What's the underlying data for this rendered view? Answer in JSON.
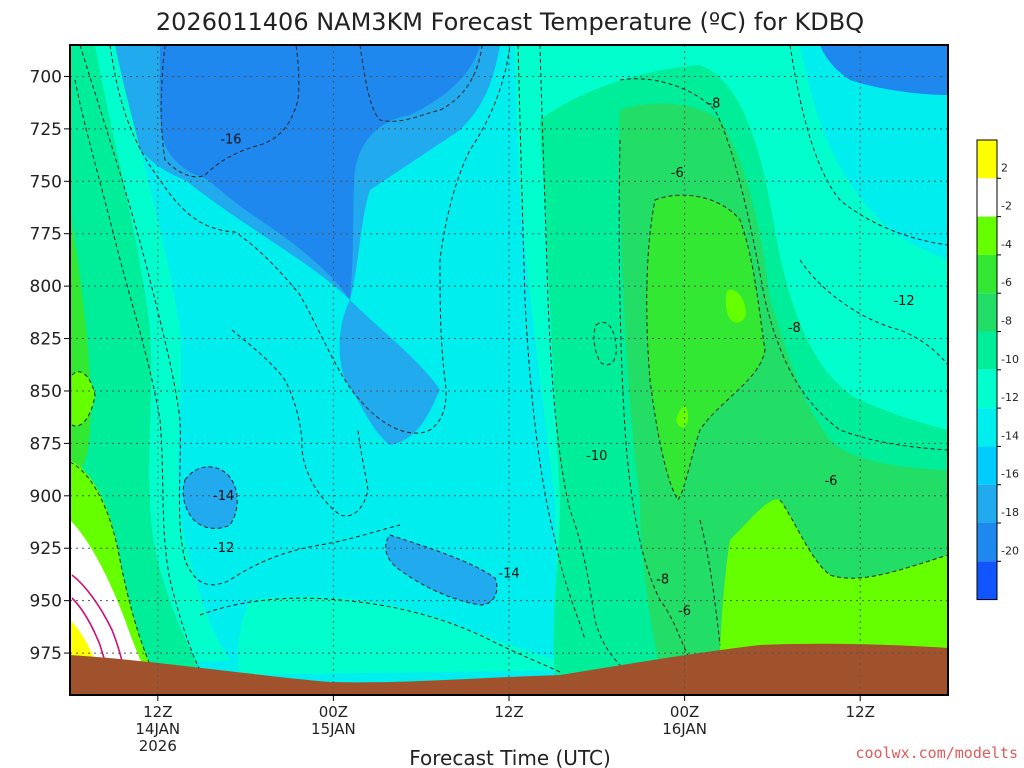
{
  "chart_data": {
    "type": "heatmap",
    "title": "2026011406 NAM3KM Forecast Temperature (ºC) for KDBQ",
    "xlabel": "Forecast Time (UTC)",
    "credit": "coolwx.com/modelts",
    "y_axis": {
      "ticks": [
        700,
        725,
        750,
        775,
        800,
        825,
        850,
        875,
        900,
        925,
        950,
        975
      ],
      "range": [
        685,
        995
      ],
      "inverted": true
    },
    "x_axis": {
      "ticks": [
        {
          "hour": 6,
          "line1": "12Z",
          "line2": "14JAN",
          "line3": "2026"
        },
        {
          "hour": 18,
          "line1": "00Z",
          "line2": "15JAN",
          "line3": ""
        },
        {
          "hour": 30,
          "line1": "12Z",
          "line2": "",
          "line3": ""
        },
        {
          "hour": 42,
          "line1": "00Z",
          "line2": "16JAN",
          "line3": ""
        },
        {
          "hour": 54,
          "line1": "12Z",
          "line2": "",
          "line3": ""
        }
      ],
      "range": [
        0,
        60
      ]
    },
    "grid": true,
    "legend": "right",
    "colorbar": {
      "bands": [
        {
          "min": 2,
          "max": 4,
          "color": "#ffff00"
        },
        {
          "min": -2,
          "max": 2,
          "color": "#ffffff"
        },
        {
          "min": -4,
          "max": -2,
          "color": "#66ff00"
        },
        {
          "min": -6,
          "max": -4,
          "color": "#33e833"
        },
        {
          "min": -8,
          "max": -6,
          "color": "#22dd66"
        },
        {
          "min": -10,
          "max": -8,
          "color": "#00ee99"
        },
        {
          "min": -12,
          "max": -10,
          "color": "#00ffcc"
        },
        {
          "min": -14,
          "max": -12,
          "color": "#00eeee"
        },
        {
          "min": -16,
          "max": -14,
          "color": "#00ccff"
        },
        {
          "min": -18,
          "max": -16,
          "color": "#22aaee"
        },
        {
          "min": -20,
          "max": -18,
          "color": "#1e88ee"
        },
        {
          "min": -22,
          "max": -20,
          "color": "#1155ff"
        }
      ],
      "tick_labels": [
        "2",
        "-2",
        "-4",
        "-6",
        "-8",
        "-10",
        "-12",
        "-14",
        "-16",
        "-18",
        "-20"
      ]
    },
    "contour_labels": [
      {
        "text": "-16",
        "hour": 11,
        "p": 730
      },
      {
        "text": "-14",
        "hour": 10.5,
        "p": 900
      },
      {
        "text": "-12",
        "hour": 10.5,
        "p": 925
      },
      {
        "text": "-14",
        "hour": 30,
        "p": 937
      },
      {
        "text": "-10",
        "hour": 36,
        "p": 881
      },
      {
        "text": "-8",
        "hour": 44,
        "p": 713
      },
      {
        "text": "-6",
        "hour": 41.5,
        "p": 746
      },
      {
        "text": "-8",
        "hour": 40.5,
        "p": 940
      },
      {
        "text": "-6",
        "hour": 42,
        "p": 955
      },
      {
        "text": "-8",
        "hour": 49.5,
        "p": 820
      },
      {
        "text": "-12",
        "hour": 57,
        "p": 807
      },
      {
        "text": "-6",
        "hour": 52,
        "p": 893
      }
    ],
    "terrain": {
      "color": "#a0522d"
    },
    "freezing_line_color": "#cc1177"
  }
}
